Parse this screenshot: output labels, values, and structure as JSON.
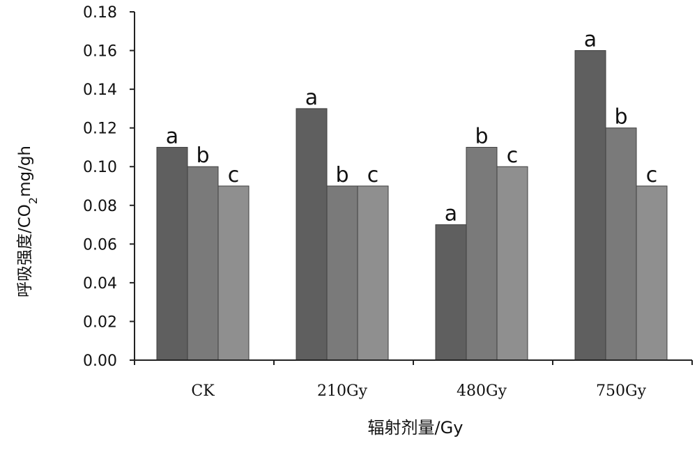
{
  "chart_data": {
    "type": "bar",
    "title": "",
    "xlabel": "辐射剂量/Gy",
    "ylabel_main": "呼吸强度/CO",
    "ylabel_sub": "2",
    "ylabel_tail": "mg/gh",
    "categories": [
      "CK",
      "210Gy",
      "480Gy",
      "750Gy"
    ],
    "series": [
      {
        "name": "series-1",
        "color": "#5f5f5f",
        "values": [
          0.11,
          0.13,
          0.07,
          0.16
        ],
        "labels": [
          "a",
          "a",
          "a",
          "a"
        ]
      },
      {
        "name": "series-2",
        "color": "#7a7a7a",
        "values": [
          0.1,
          0.09,
          0.11,
          0.12
        ],
        "labels": [
          "b",
          "b",
          "b",
          "b"
        ]
      },
      {
        "name": "series-3",
        "color": "#8f8f8f",
        "values": [
          0.09,
          0.09,
          0.1,
          0.09
        ],
        "labels": [
          "c",
          "c",
          "c",
          "c"
        ]
      }
    ],
    "ylim": [
      0,
      0.18
    ],
    "yticks": [
      "0.00",
      "0.02",
      "0.04",
      "0.06",
      "0.08",
      "0.10",
      "0.12",
      "0.14",
      "0.16",
      "0.18"
    ],
    "grid": false,
    "legend": "none"
  }
}
